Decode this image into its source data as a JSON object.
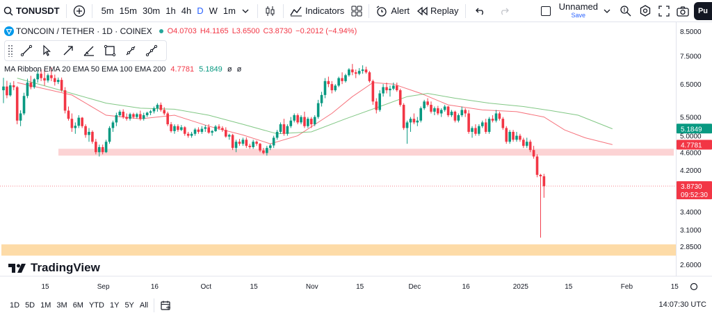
{
  "toolbar": {
    "symbol": "TONUSDT",
    "intervals": [
      "5m",
      "15m",
      "30m",
      "1h",
      "4h",
      "D",
      "W",
      "1m"
    ],
    "active_interval": "D",
    "indicators_label": "Indicators",
    "alert_label": "Alert",
    "replay_label": "Replay",
    "layout_name": "Unnamed",
    "save_label": "Save",
    "publish_label": "Pu"
  },
  "legend": {
    "title": "TONCOIN / TETHER · 1D · COINEX",
    "open": "O4.0703",
    "high": "H4.1165",
    "low": "L3.6500",
    "close": "C3.8730",
    "change": "−0.2012 (−4.94%)",
    "indicator": "MA Ribbon EMA 20 EMA 50 EMA 100 EMA 200",
    "ind_val1": "4.7781",
    "ind_val2": "5.1849",
    "ind_val3": "ø",
    "ind_val4": "ø"
  },
  "branding": {
    "logo_text": "TradingView"
  },
  "bottombar": {
    "ranges": [
      "1D",
      "5D",
      "1M",
      "3M",
      "6M",
      "YTD",
      "1Y",
      "5Y",
      "All"
    ],
    "clock": "14:07:30 UTC"
  },
  "colors": {
    "up": "#089981",
    "down": "#f23645",
    "ema20": "#f23645",
    "ema50": "#4caf50",
    "zone_pink": "#fccbcd",
    "zone_orange": "#fddba7"
  },
  "chart_data": {
    "type": "candlestick",
    "title": "TONCOIN / TETHER · 1D · COINEX",
    "y_scale": "log",
    "ylim": [
      2.45,
      8.9
    ],
    "y_ticks": [
      "8.5000",
      "7.5000",
      "6.5000",
      "5.5000",
      "5.0000",
      "4.6000",
      "4.2000",
      "3.4000",
      "3.1000",
      "2.8500",
      "2.6000"
    ],
    "x_ticks": [
      {
        "label": "15",
        "day": 0
      },
      {
        "label": "Sep",
        "day": 17
      },
      {
        "label": "16",
        "day": 32
      },
      {
        "label": "Oct",
        "day": 47
      },
      {
        "label": "15",
        "day": 61
      },
      {
        "label": "Nov",
        "day": 78
      },
      {
        "label": "15",
        "day": 92
      },
      {
        "label": "Dec",
        "day": 108
      },
      {
        "label": "16",
        "day": 123
      },
      {
        "label": "2025",
        "day": 139
      },
      {
        "label": "15",
        "day": 153
      },
      {
        "label": "Feb",
        "day": 170
      },
      {
        "label": "15",
        "day": 184
      }
    ],
    "price_labels": [
      {
        "value": 5.1849,
        "text": "5.1849",
        "color": "#089981"
      },
      {
        "value": 4.7781,
        "text": "4.7781",
        "color": "#f23645"
      },
      {
        "value": 3.873,
        "text": "3.8730",
        "sub": "09:52:30",
        "color": "#f23645"
      }
    ],
    "last_price": 3.873,
    "zones": [
      {
        "low": 4.52,
        "high": 4.68,
        "color": "#fccbcd",
        "opacity": 0.85
      },
      {
        "low": 2.72,
        "high": 2.88,
        "color": "#fddba7",
        "opacity": 1
      }
    ],
    "candles": [
      [
        6.3,
        6.71,
        5.9,
        6.42
      ],
      [
        6.42,
        6.61,
        6.05,
        6.14
      ],
      [
        6.14,
        6.55,
        6.1,
        6.46
      ],
      [
        6.46,
        6.6,
        6.3,
        6.4
      ],
      [
        6.4,
        6.44,
        5.3,
        5.4
      ],
      [
        5.4,
        5.69,
        5.25,
        5.6
      ],
      [
        5.6,
        6.22,
        5.55,
        6.12
      ],
      [
        6.12,
        6.68,
        6.05,
        6.55
      ],
      [
        6.55,
        6.78,
        6.33,
        6.4
      ],
      [
        6.4,
        6.7,
        6.35,
        6.66
      ],
      [
        6.66,
        6.98,
        6.55,
        6.85
      ],
      [
        6.85,
        7.0,
        6.6,
        6.7
      ],
      [
        6.7,
        7.0,
        6.45,
        6.62
      ],
      [
        6.62,
        6.86,
        6.55,
        6.8
      ],
      [
        6.8,
        7.07,
        6.6,
        6.7
      ],
      [
        6.7,
        6.82,
        6.45,
        6.57
      ],
      [
        6.57,
        6.72,
        6.5,
        6.64
      ],
      [
        6.64,
        6.72,
        6.25,
        6.3
      ],
      [
        6.3,
        6.4,
        5.6,
        5.68
      ],
      [
        5.68,
        5.8,
        5.4,
        5.45
      ],
      [
        5.45,
        5.6,
        5.1,
        5.2
      ],
      [
        5.2,
        5.35,
        5.05,
        5.26
      ],
      [
        5.26,
        5.55,
        5.2,
        5.48
      ],
      [
        5.48,
        5.5,
        5.2,
        5.25
      ],
      [
        5.25,
        5.3,
        4.95,
        5.02
      ],
      [
        5.02,
        5.2,
        4.85,
        5.1
      ],
      [
        5.1,
        5.14,
        4.8,
        4.85
      ],
      [
        4.85,
        4.92,
        4.55,
        4.6
      ],
      [
        4.6,
        4.78,
        4.5,
        4.72
      ],
      [
        4.72,
        4.78,
        4.55,
        4.6
      ],
      [
        4.6,
        4.9,
        4.58,
        4.85
      ],
      [
        4.85,
        5.25,
        4.8,
        5.2
      ],
      [
        5.2,
        5.4,
        5.1,
        5.35
      ],
      [
        5.35,
        5.62,
        5.25,
        5.55
      ],
      [
        5.55,
        5.7,
        5.5,
        5.65
      ],
      [
        5.65,
        5.72,
        5.45,
        5.5
      ],
      [
        5.5,
        5.6,
        5.4,
        5.45
      ],
      [
        5.45,
        5.62,
        5.4,
        5.58
      ],
      [
        5.58,
        5.62,
        5.45,
        5.5
      ],
      [
        5.5,
        5.62,
        5.45,
        5.58
      ],
      [
        5.58,
        5.68,
        5.4,
        5.45
      ],
      [
        5.45,
        5.62,
        5.4,
        5.55
      ],
      [
        5.55,
        5.65,
        5.5,
        5.62
      ],
      [
        5.62,
        5.7,
        5.55,
        5.66
      ],
      [
        5.66,
        5.8,
        5.6,
        5.75
      ],
      [
        5.75,
        5.9,
        5.65,
        5.85
      ],
      [
        5.85,
        5.92,
        5.65,
        5.7
      ],
      [
        5.7,
        5.78,
        5.55,
        5.6
      ],
      [
        5.6,
        5.65,
        5.25,
        5.3
      ],
      [
        5.3,
        5.36,
        5.08,
        5.12
      ],
      [
        5.12,
        5.3,
        5.05,
        5.25
      ],
      [
        5.25,
        5.3,
        5.1,
        5.15
      ],
      [
        5.15,
        5.28,
        5.12,
        5.22
      ],
      [
        5.22,
        5.25,
        5.0,
        5.05
      ],
      [
        5.05,
        5.1,
        4.95,
        5.0
      ],
      [
        5.0,
        5.1,
        4.95,
        5.05
      ],
      [
        5.05,
        5.2,
        5.0,
        5.16
      ],
      [
        5.16,
        5.22,
        5.05,
        5.1
      ],
      [
        5.1,
        5.25,
        5.05,
        5.18
      ],
      [
        5.18,
        5.28,
        5.1,
        5.22
      ],
      [
        5.22,
        5.3,
        5.05,
        5.08
      ],
      [
        5.08,
        5.15,
        5.0,
        5.12
      ],
      [
        5.12,
        5.28,
        5.1,
        5.24
      ],
      [
        5.24,
        5.3,
        5.15,
        5.2
      ],
      [
        5.2,
        5.25,
        5.1,
        5.15
      ],
      [
        5.15,
        5.22,
        4.95,
        4.98
      ],
      [
        4.98,
        5.05,
        4.9,
        5.02
      ],
      [
        5.02,
        5.05,
        4.65,
        4.7
      ],
      [
        4.7,
        4.9,
        4.6,
        4.85
      ],
      [
        4.85,
        4.92,
        4.75,
        4.8
      ],
      [
        4.8,
        4.95,
        4.75,
        4.9
      ],
      [
        4.9,
        4.96,
        4.7,
        4.75
      ],
      [
        4.75,
        4.8,
        4.68,
        4.72
      ],
      [
        4.72,
        4.9,
        4.68,
        4.85
      ],
      [
        4.85,
        4.88,
        4.75,
        4.8
      ],
      [
        4.8,
        4.82,
        4.6,
        4.64
      ],
      [
        4.64,
        4.7,
        4.55,
        4.58
      ],
      [
        4.58,
        4.75,
        4.52,
        4.7
      ],
      [
        4.7,
        4.8,
        4.65,
        4.76
      ],
      [
        4.76,
        5.0,
        4.7,
        4.95
      ],
      [
        4.95,
        5.15,
        4.9,
        5.1
      ],
      [
        5.1,
        5.35,
        5.05,
        5.3
      ],
      [
        5.3,
        5.45,
        5.0,
        5.05
      ],
      [
        5.05,
        5.3,
        5.0,
        5.25
      ],
      [
        5.25,
        5.5,
        5.2,
        5.4
      ],
      [
        5.4,
        5.6,
        5.35,
        5.55
      ],
      [
        5.55,
        5.6,
        5.3,
        5.35
      ],
      [
        5.35,
        5.55,
        5.3,
        5.5
      ],
      [
        5.5,
        5.65,
        5.2,
        5.25
      ],
      [
        5.25,
        5.5,
        5.2,
        5.45
      ],
      [
        5.45,
        5.5,
        5.2,
        5.3
      ],
      [
        5.3,
        5.55,
        5.25,
        5.5
      ],
      [
        5.5,
        6.0,
        5.45,
        5.9
      ],
      [
        5.9,
        6.25,
        5.8,
        6.15
      ],
      [
        6.15,
        6.7,
        6.05,
        6.6
      ],
      [
        6.6,
        6.75,
        6.4,
        6.5
      ],
      [
        6.5,
        6.6,
        6.2,
        6.3
      ],
      [
        6.3,
        6.5,
        6.25,
        6.45
      ],
      [
        6.45,
        6.75,
        6.4,
        6.7
      ],
      [
        6.7,
        6.9,
        6.5,
        6.6
      ],
      [
        6.6,
        6.85,
        6.55,
        6.8
      ],
      [
        6.8,
        7.05,
        6.75,
        7.0
      ],
      [
        7.0,
        7.2,
        6.8,
        6.9
      ],
      [
        6.9,
        7.0,
        6.7,
        6.85
      ],
      [
        6.85,
        7.05,
        6.8,
        6.95
      ],
      [
        6.95,
        7.15,
        6.85,
        7.0
      ],
      [
        7.0,
        7.1,
        6.85,
        6.9
      ],
      [
        6.9,
        6.95,
        6.55,
        6.6
      ],
      [
        6.6,
        6.65,
        5.85,
        5.95
      ],
      [
        5.95,
        6.05,
        5.6,
        5.7
      ],
      [
        5.7,
        6.3,
        5.65,
        6.2
      ],
      [
        6.2,
        6.5,
        6.1,
        6.4
      ],
      [
        6.4,
        6.55,
        6.2,
        6.3
      ],
      [
        6.3,
        6.45,
        6.1,
        6.35
      ],
      [
        6.35,
        6.55,
        6.3,
        6.45
      ],
      [
        6.45,
        6.55,
        6.25,
        6.3
      ],
      [
        6.3,
        6.35,
        5.8,
        5.85
      ],
      [
        5.85,
        5.9,
        5.15,
        5.2
      ],
      [
        5.2,
        5.4,
        4.8,
        5.35
      ],
      [
        5.35,
        5.5,
        5.1,
        5.45
      ],
      [
        5.45,
        5.6,
        5.3,
        5.35
      ],
      [
        5.35,
        5.5,
        5.25,
        5.4
      ],
      [
        5.4,
        5.8,
        5.35,
        5.75
      ],
      [
        5.75,
        6.0,
        5.7,
        5.95
      ],
      [
        5.95,
        6.05,
        5.8,
        5.85
      ],
      [
        5.85,
        5.95,
        5.6,
        5.65
      ],
      [
        5.65,
        5.8,
        5.55,
        5.75
      ],
      [
        5.75,
        5.82,
        5.55,
        5.6
      ],
      [
        5.6,
        5.75,
        5.5,
        5.7
      ],
      [
        5.7,
        5.85,
        5.65,
        5.8
      ],
      [
        5.8,
        5.82,
        5.5,
        5.55
      ],
      [
        5.55,
        5.7,
        5.5,
        5.65
      ],
      [
        5.65,
        5.68,
        5.35,
        5.4
      ],
      [
        5.4,
        5.6,
        5.35,
        5.55
      ],
      [
        5.55,
        5.8,
        5.5,
        5.7
      ],
      [
        5.7,
        5.75,
        5.5,
        5.6
      ],
      [
        5.6,
        5.7,
        5.05,
        5.1
      ],
      [
        5.1,
        5.25,
        4.95,
        5.2
      ],
      [
        5.2,
        5.3,
        5.0,
        5.05
      ],
      [
        5.05,
        5.3,
        5.0,
        5.25
      ],
      [
        5.25,
        5.4,
        5.2,
        5.35
      ],
      [
        5.35,
        5.45,
        5.05,
        5.1
      ],
      [
        5.1,
        5.5,
        5.05,
        5.45
      ],
      [
        5.45,
        5.55,
        5.35,
        5.4
      ],
      [
        5.4,
        5.7,
        5.35,
        5.6
      ],
      [
        5.6,
        5.65,
        5.4,
        5.45
      ],
      [
        5.45,
        5.5,
        5.15,
        5.2
      ],
      [
        5.2,
        5.25,
        4.8,
        4.85
      ],
      [
        4.85,
        5.15,
        4.8,
        5.1
      ],
      [
        5.1,
        5.15,
        4.85,
        4.9
      ],
      [
        4.9,
        5.1,
        4.85,
        5.0
      ],
      [
        5.0,
        5.05,
        4.85,
        4.9
      ],
      [
        4.9,
        4.95,
        4.7,
        4.75
      ],
      [
        4.75,
        4.95,
        4.7,
        4.85
      ],
      [
        4.85,
        4.9,
        4.6,
        4.65
      ],
      [
        4.65,
        4.75,
        4.45,
        4.5
      ],
      [
        4.5,
        4.55,
        4.05,
        4.1
      ],
      [
        4.1,
        4.12,
        2.98,
        4.07
      ],
      [
        4.07,
        4.12,
        3.65,
        3.87
      ]
    ],
    "ema20": [
      [
        4,
        6.55
      ],
      [
        20,
        6.15
      ],
      [
        30,
        5.55
      ],
      [
        40,
        5.45
      ],
      [
        50,
        5.55
      ],
      [
        60,
        5.25
      ],
      [
        70,
        5.02
      ],
      [
        78,
        4.8
      ],
      [
        86,
        5.0
      ],
      [
        96,
        5.6
      ],
      [
        102,
        6.1
      ],
      [
        108,
        6.55
      ],
      [
        114,
        6.5
      ],
      [
        122,
        6.2
      ],
      [
        130,
        5.85
      ],
      [
        140,
        5.7
      ],
      [
        150,
        5.65
      ],
      [
        158,
        5.5
      ],
      [
        164,
        5.15
      ],
      [
        170,
        4.95
      ],
      [
        178,
        4.78
      ]
    ],
    "ema50": [
      [
        4,
        6.7
      ],
      [
        20,
        6.2
      ],
      [
        30,
        5.9
      ],
      [
        40,
        5.75
      ],
      [
        50,
        5.72
      ],
      [
        60,
        5.55
      ],
      [
        70,
        5.3
      ],
      [
        80,
        5.05
      ],
      [
        90,
        5.1
      ],
      [
        100,
        5.45
      ],
      [
        110,
        5.8
      ],
      [
        118,
        6.1
      ],
      [
        124,
        6.2
      ],
      [
        132,
        6.05
      ],
      [
        142,
        5.9
      ],
      [
        152,
        5.8
      ],
      [
        160,
        5.68
      ],
      [
        168,
        5.55
      ],
      [
        178,
        5.18
      ]
    ]
  }
}
